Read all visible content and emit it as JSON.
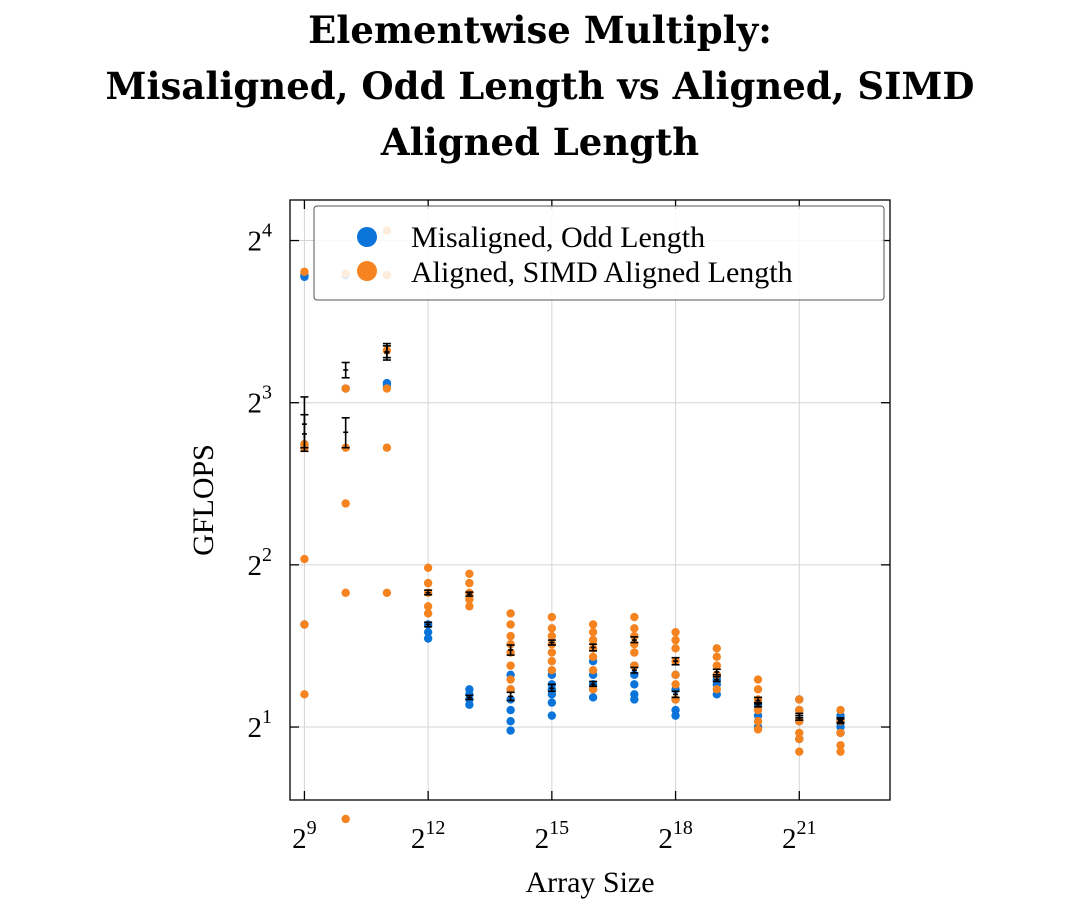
{
  "title_lines": [
    "Elementwise Multiply:",
    "Misaligned, Odd Length vs Aligned, SIMD",
    "Aligned Length"
  ],
  "chart_data": {
    "type": "scatter",
    "title": "Elementwise Multiply: Misaligned, Odd Length vs Aligned, SIMD Aligned Length",
    "xlabel": "Array Size",
    "ylabel": "GFLOPS",
    "xscale": "log2",
    "yscale": "log2",
    "x_ticks": [
      {
        "base": "2",
        "exp": "9",
        "value": 512
      },
      {
        "base": "2",
        "exp": "12",
        "value": 4096
      },
      {
        "base": "2",
        "exp": "15",
        "value": 32768
      },
      {
        "base": "2",
        "exp": "18",
        "value": 262144
      },
      {
        "base": "2",
        "exp": "21",
        "value": 2097152
      }
    ],
    "y_ticks": [
      {
        "base": "2",
        "exp": "1",
        "value": 2
      },
      {
        "base": "2",
        "exp": "2",
        "value": 4
      },
      {
        "base": "2",
        "exp": "3",
        "value": 8
      },
      {
        "base": "2",
        "exp": "4",
        "value": 16
      }
    ],
    "grid": true,
    "legend_position": "top-right",
    "series": [
      {
        "name": "Misaligned, Odd Length",
        "color": "#0a74da",
        "x": [
          512,
          512,
          512,
          512,
          512,
          1024,
          1024,
          2048,
          2048,
          4096,
          4096,
          4096,
          8192,
          8192,
          8192,
          8192,
          16384,
          16384,
          16384,
          16384,
          16384,
          16384,
          32768,
          32768,
          32768,
          32768,
          32768,
          32768,
          65536,
          65536,
          65536,
          65536,
          65536,
          131072,
          131072,
          131072,
          131072,
          131072,
          262144,
          262144,
          262144,
          262144,
          262144,
          524288,
          524288,
          524288,
          1048576,
          1048576,
          1048576,
          2097152,
          2097152,
          2097152,
          2097152,
          4194304,
          4194304,
          4194304
        ],
        "y": [
          13.7,
          6.6,
          3.1,
          6.7,
          13.8,
          13.8,
          8.5,
          8.6,
          8.7,
          3.1,
          3.0,
          2.92,
          2.3,
          2.2,
          2.25,
          2.35,
          1.97,
          2.15,
          2.25,
          2.35,
          2.5,
          2.05,
          2.1,
          2.22,
          2.3,
          2.4,
          2.5,
          2.35,
          2.27,
          2.35,
          2.4,
          2.5,
          2.65,
          2.25,
          2.3,
          2.4,
          2.5,
          2.6,
          2.1,
          2.15,
          2.25,
          2.35,
          2.5,
          2.4,
          2.45,
          2.3,
          2.0,
          2.1,
          2.2,
          1.9,
          2.05,
          2.15,
          2.25,
          1.95,
          2.0,
          2.1
        ],
        "mean_ci": [
          {
            "x": 512,
            "y": 7.0,
            "lo": 6.5,
            "hi": 7.6
          },
          {
            "x": 1024,
            "y": 7.05,
            "lo": 6.6,
            "hi": 7.5
          },
          {
            "x": 2048,
            "y": 9.9,
            "lo": 9.6,
            "hi": 10.3
          },
          {
            "x": 4096,
            "y": 3.1,
            "lo": 3.07,
            "hi": 3.13
          },
          {
            "x": 8192,
            "y": 2.27,
            "lo": 2.25,
            "hi": 2.29
          },
          {
            "x": 16384,
            "y": 2.28,
            "lo": 2.24,
            "hi": 2.32
          },
          {
            "x": 32768,
            "y": 2.36,
            "lo": 2.33,
            "hi": 2.4
          },
          {
            "x": 65536,
            "y": 2.4,
            "lo": 2.38,
            "hi": 2.43
          },
          {
            "x": 131072,
            "y": 2.55,
            "lo": 2.52,
            "hi": 2.58
          },
          {
            "x": 262144,
            "y": 2.3,
            "lo": 2.27,
            "hi": 2.33
          },
          {
            "x": 524288,
            "y": 2.45,
            "lo": 2.43,
            "hi": 2.48
          },
          {
            "x": 1048576,
            "y": 2.2,
            "lo": 2.18,
            "hi": 2.22
          },
          {
            "x": 2097152,
            "y": 2.08,
            "lo": 2.06,
            "hi": 2.1
          },
          {
            "x": 4194304,
            "y": 2.05,
            "lo": 2.03,
            "hi": 2.07
          }
        ]
      },
      {
        "name": "Aligned, SIMD Aligned Length",
        "color": "#f5831f",
        "x": [
          512,
          512,
          512,
          512,
          512,
          512,
          1024,
          1024,
          1024,
          1024,
          1024,
          1024,
          2048,
          2048,
          2048,
          2048,
          2048,
          2048,
          4096,
          4096,
          4096,
          4096,
          4096,
          8192,
          8192,
          8192,
          8192,
          8192,
          16384,
          16384,
          16384,
          16384,
          16384,
          16384,
          16384,
          16384,
          32768,
          32768,
          32768,
          32768,
          32768,
          32768,
          32768,
          65536,
          65536,
          65536,
          65536,
          65536,
          65536,
          65536,
          131072,
          131072,
          131072,
          131072,
          131072,
          131072,
          262144,
          262144,
          262144,
          262144,
          262144,
          262144,
          262144,
          524288,
          524288,
          524288,
          524288,
          524288,
          1048576,
          1048576,
          1048576,
          1048576,
          1048576,
          1048576,
          2097152,
          2097152,
          2097152,
          2097152,
          2097152,
          2097152,
          4194304,
          4194304,
          4194304,
          4194304,
          4194304
        ],
        "y": [
          14.0,
          6.7,
          4.1,
          3.1,
          2.3,
          6.6,
          13.9,
          8.5,
          6.6,
          5.2,
          3.55,
          1.35,
          16.7,
          13.8,
          10.0,
          8.5,
          6.6,
          3.55,
          3.95,
          3.7,
          3.55,
          3.35,
          3.25,
          3.85,
          3.7,
          3.55,
          3.45,
          3.35,
          3.25,
          3.1,
          2.95,
          2.85,
          2.75,
          2.6,
          2.45,
          2.35,
          3.2,
          3.05,
          2.95,
          2.85,
          2.75,
          2.65,
          2.55,
          3.1,
          3.0,
          2.9,
          2.8,
          2.7,
          2.55,
          2.35,
          3.2,
          3.05,
          2.95,
          2.85,
          2.75,
          2.6,
          3.0,
          2.9,
          2.8,
          2.65,
          2.5,
          2.4,
          2.25,
          2.8,
          2.7,
          2.6,
          2.5,
          2.35,
          2.45,
          2.35,
          2.25,
          2.15,
          2.05,
          1.98,
          2.25,
          2.15,
          2.05,
          1.95,
          1.9,
          1.8,
          2.15,
          2.05,
          1.95,
          1.85,
          1.8
        ],
        "mean_ci": [
          {
            "x": 512,
            "y": 7.3,
            "lo": 6.6,
            "hi": 8.2
          },
          {
            "x": 1024,
            "y": 9.2,
            "lo": 8.9,
            "hi": 9.5
          },
          {
            "x": 2048,
            "y": 9.95,
            "lo": 9.7,
            "hi": 10.2
          },
          {
            "x": 4096,
            "y": 3.55,
            "lo": 3.52,
            "hi": 3.59
          },
          {
            "x": 8192,
            "y": 3.53,
            "lo": 3.5,
            "hi": 3.56
          },
          {
            "x": 16384,
            "y": 2.78,
            "lo": 2.72,
            "hi": 2.84
          },
          {
            "x": 32768,
            "y": 2.87,
            "lo": 2.84,
            "hi": 2.9
          },
          {
            "x": 65536,
            "y": 2.81,
            "lo": 2.77,
            "hi": 2.85
          },
          {
            "x": 131072,
            "y": 2.9,
            "lo": 2.87,
            "hi": 2.94
          },
          {
            "x": 262144,
            "y": 2.65,
            "lo": 2.61,
            "hi": 2.69
          },
          {
            "x": 524288,
            "y": 2.53,
            "lo": 2.5,
            "hi": 2.56
          },
          {
            "x": 1048576,
            "y": 2.24,
            "lo": 2.21,
            "hi": 2.27
          },
          {
            "x": 2097152,
            "y": 2.1,
            "lo": 2.08,
            "hi": 2.12
          },
          {
            "x": 4194304,
            "y": 2.06,
            "lo": 2.04,
            "hi": 2.08
          }
        ]
      }
    ]
  }
}
